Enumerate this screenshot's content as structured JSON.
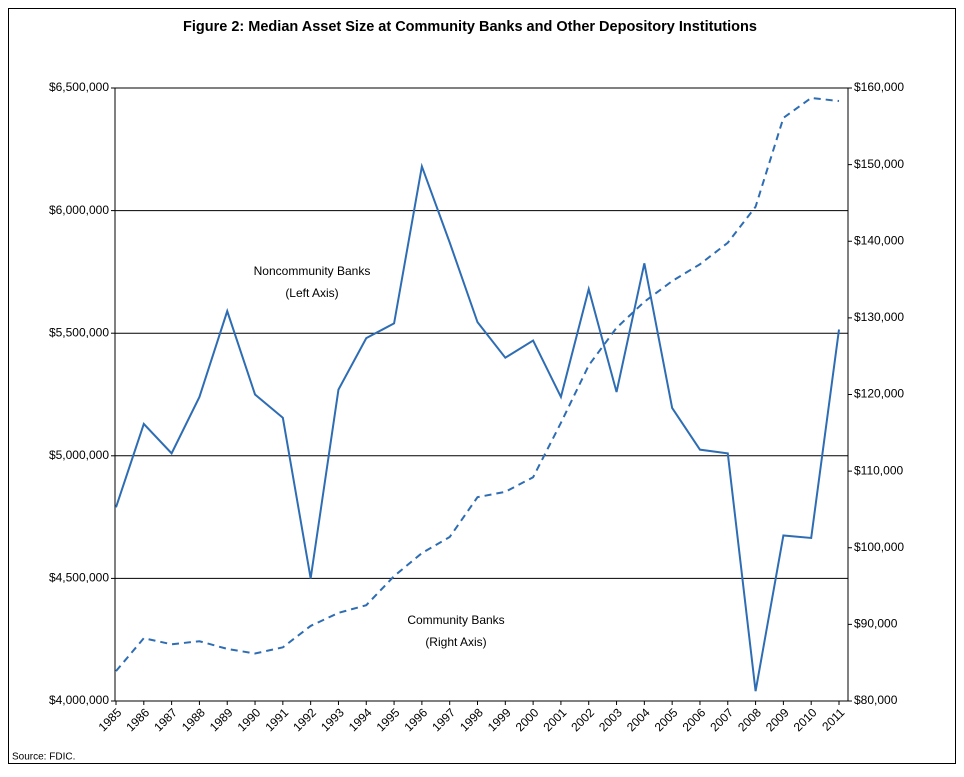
{
  "chart_data": {
    "type": "line",
    "title": "Figure 2: Median Asset Size at Community Banks and Other Depository Institutions",
    "source": "Source: FDIC.",
    "categories": [
      "1985",
      "1986",
      "1987",
      "1988",
      "1989",
      "1990",
      "1991",
      "1992",
      "1993",
      "1994",
      "1995",
      "1996",
      "1997",
      "1998",
      "1999",
      "2000",
      "2001",
      "2002",
      "2003",
      "2004",
      "2005",
      "2006",
      "2007",
      "2008",
      "2009",
      "2010",
      "2011"
    ],
    "series": [
      {
        "name": "Noncommunity Banks",
        "axis_note": "(Left Axis)",
        "color": "#2e6db4",
        "line_style": "solid",
        "axis": "y",
        "values": [
          4790000,
          5130000,
          5010000,
          5240000,
          5590000,
          5250000,
          5155000,
          4500000,
          5270000,
          5480000,
          5540000,
          6180000,
          5870000,
          5545000,
          5400000,
          5470000,
          5240000,
          5680000,
          5260000,
          5785000,
          5195000,
          5025000,
          5010000,
          4040000,
          4675000,
          4665000,
          5515000
        ]
      },
      {
        "name": "Community Banks",
        "axis_note": "(Right Axis)",
        "color": "#2e6db4",
        "line_style": "dashed",
        "axis": "y2",
        "values": [
          83900,
          88200,
          87400,
          87800,
          86800,
          86200,
          87000,
          89800,
          91500,
          92500,
          96300,
          99300,
          101400,
          106600,
          107300,
          109200,
          116300,
          123800,
          128700,
          132100,
          134800,
          137000,
          139800,
          144500,
          156100,
          158700,
          158300
        ]
      }
    ],
    "ylim": [
      4000000,
      6500000
    ],
    "yticks": [
      {
        "value": 4000000,
        "label": "$4,000,000"
      },
      {
        "value": 4500000,
        "label": "$4,500,000"
      },
      {
        "value": 5000000,
        "label": "$5,000,000"
      },
      {
        "value": 5500000,
        "label": "$5,500,000"
      },
      {
        "value": 6000000,
        "label": "$6,000,000"
      },
      {
        "value": 6500000,
        "label": "$6,500,000"
      }
    ],
    "y2lim": [
      80000,
      160000
    ],
    "y2ticks": [
      {
        "value": 80000,
        "label": "$80,000"
      },
      {
        "value": 90000,
        "label": "$90,000"
      },
      {
        "value": 100000,
        "label": "$100,000"
      },
      {
        "value": 110000,
        "label": "$110,000"
      },
      {
        "value": 120000,
        "label": "$120,000"
      },
      {
        "value": 130000,
        "label": "$130,000"
      },
      {
        "value": 140000,
        "label": "$140,000"
      },
      {
        "value": 150000,
        "label": "$150,000"
      },
      {
        "value": 160000,
        "label": "$160,000"
      }
    ],
    "grid": true
  }
}
